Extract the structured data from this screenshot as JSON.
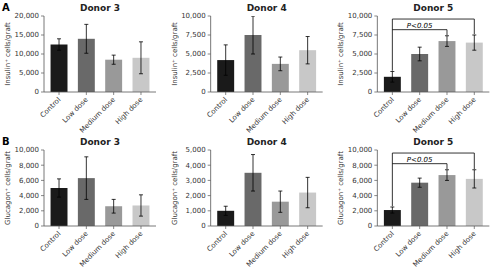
{
  "chart_data": [
    {
      "type": "bar",
      "panel_label": "A",
      "title": "Donor 3",
      "ylabel": "Insulin⁺ cells/graft",
      "categories": [
        "Control",
        "Low dose",
        "Medium dose",
        "High dose"
      ],
      "values": [
        12500,
        14000,
        8500,
        9000
      ],
      "errors": [
        1500,
        3800,
        1200,
        4200
      ],
      "colors": [
        "#1a1a1a",
        "#696969",
        "#999999",
        "#c8c8c8"
      ],
      "ylim": [
        0,
        20000
      ],
      "yticks": [
        0,
        {
          "value": 5000,
          "label": "5,000"
        },
        {
          "value": 10000,
          "label": "10,000"
        },
        {
          "value": 15000,
          "label": "15,000"
        },
        {
          "value": 20000,
          "label": "20,000"
        }
      ]
    },
    {
      "type": "bar",
      "title": "Donor 4",
      "ylabel": "Insulin⁺ cells/graft",
      "categories": [
        "Control",
        "Low dose",
        "Medium dose",
        "High dose"
      ],
      "values": [
        4200,
        7500,
        3700,
        5500
      ],
      "errors": [
        2000,
        2500,
        900,
        1800
      ],
      "colors": [
        "#1a1a1a",
        "#696969",
        "#999999",
        "#c8c8c8"
      ],
      "ylim": [
        0,
        10000
      ],
      "yticks": [
        0,
        {
          "value": 2500,
          "label": "2,500"
        },
        {
          "value": 5000,
          "label": "5,000"
        },
        {
          "value": 7500,
          "label": "7,500"
        },
        {
          "value": 10000,
          "label": "10,000"
        }
      ]
    },
    {
      "type": "bar",
      "title": "Donor 5",
      "ylabel": "Insulin⁺ cells/graft",
      "categories": [
        "Control",
        "Low dose",
        "Medium dose",
        "High dose"
      ],
      "values": [
        2000,
        5000,
        6700,
        6500
      ],
      "errors": [
        700,
        900,
        700,
        1000
      ],
      "colors": [
        "#1a1a1a",
        "#696969",
        "#999999",
        "#c8c8c8"
      ],
      "ylim": [
        0,
        10000
      ],
      "yticks": [
        0,
        {
          "value": 2500,
          "label": "2,500"
        },
        {
          "value": 5000,
          "label": "5,000"
        },
        {
          "value": 7500,
          "label": "7,500"
        },
        {
          "value": 10000,
          "label": "10,000"
        }
      ],
      "brackets": [
        {
          "between": [
            "Control",
            "High dose"
          ]
        },
        {
          "between": [
            "Control",
            "Medium dose"
          ],
          "text": "P<0.05"
        }
      ]
    },
    {
      "type": "bar",
      "panel_label": "B",
      "title": "Donor 3",
      "ylabel": "Glucagon⁺ cells/graft",
      "categories": [
        "Control",
        "Low dose",
        "Medium dose",
        "High dose"
      ],
      "values": [
        5000,
        6300,
        2600,
        2700
      ],
      "errors": [
        1200,
        2800,
        900,
        1400
      ],
      "colors": [
        "#1a1a1a",
        "#696969",
        "#999999",
        "#c8c8c8"
      ],
      "ylim": [
        0,
        10000
      ],
      "yticks": [
        0,
        {
          "value": 2000,
          "label": "2,000"
        },
        {
          "value": 4000,
          "label": "4,000"
        },
        {
          "value": 6000,
          "label": "6,000"
        },
        {
          "value": 8000,
          "label": "8,000"
        },
        {
          "value": 10000,
          "label": "10,000"
        }
      ]
    },
    {
      "type": "bar",
      "title": "Donor 4",
      "ylabel": "Glucagon⁺ cells/graft",
      "categories": [
        "Control",
        "Low dose",
        "Medium dose",
        "High dose"
      ],
      "values": [
        1000,
        3500,
        1600,
        2200
      ],
      "errors": [
        300,
        1200,
        700,
        1000
      ],
      "colors": [
        "#1a1a1a",
        "#696969",
        "#999999",
        "#c8c8c8"
      ],
      "ylim": [
        0,
        5000
      ],
      "yticks": [
        0,
        {
          "value": 1000,
          "label": "1,000"
        },
        {
          "value": 2000,
          "label": "2,000"
        },
        {
          "value": 3000,
          "label": "3,000"
        },
        {
          "value": 4000,
          "label": "4,000"
        },
        {
          "value": 5000,
          "label": "5,000"
        }
      ]
    },
    {
      "type": "bar",
      "title": "Donor 5",
      "ylabel": "Glucagon⁺ cells/graft",
      "categories": [
        "Control",
        "Low dose",
        "Medium dose",
        "High dose"
      ],
      "values": [
        2100,
        5700,
        6700,
        6200
      ],
      "errors": [
        400,
        600,
        700,
        1200
      ],
      "colors": [
        "#1a1a1a",
        "#696969",
        "#999999",
        "#c8c8c8"
      ],
      "ylim": [
        0,
        10000
      ],
      "yticks": [
        0,
        {
          "value": 2000,
          "label": "2,000"
        },
        {
          "value": 4000,
          "label": "4,000"
        },
        {
          "value": 6000,
          "label": "6,000"
        },
        {
          "value": 8000,
          "label": "8,000"
        },
        {
          "value": 10000,
          "label": "10,000"
        }
      ],
      "brackets": [
        {
          "between": [
            "Control",
            "High dose"
          ]
        },
        {
          "between": [
            "Control",
            "Medium dose"
          ],
          "text": "P<0.05"
        }
      ]
    }
  ]
}
